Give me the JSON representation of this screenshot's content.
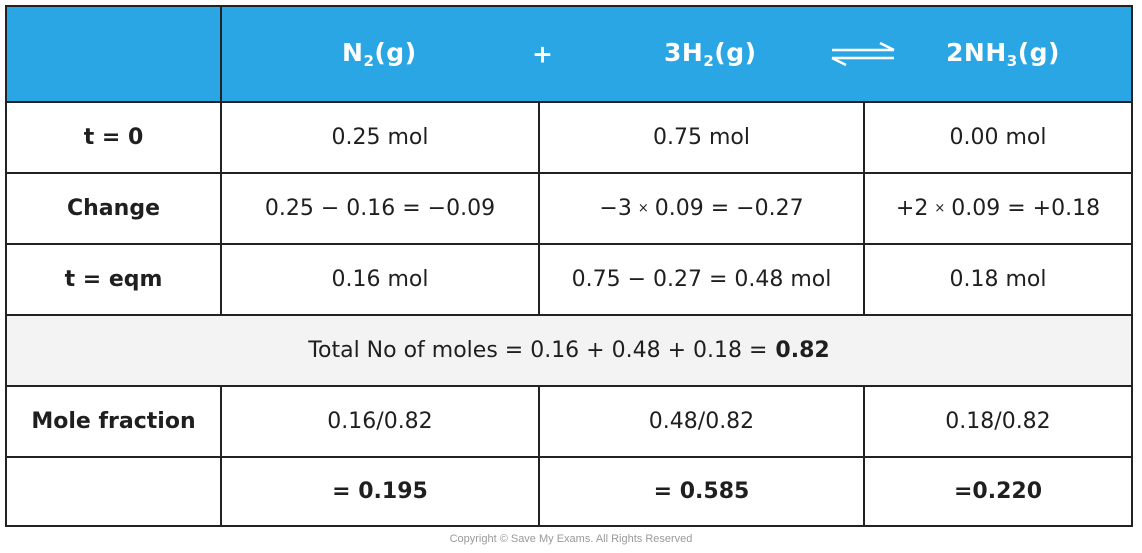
{
  "header": {
    "reactant1": {
      "text": "N",
      "sub": "2",
      "state": "(g)"
    },
    "plus": "+",
    "reactant2": {
      "text": "3H",
      "sub": "2",
      "state": "(g)"
    },
    "product": {
      "text": "2NH",
      "sub": "3",
      "state": "(g)"
    }
  },
  "rows": {
    "t0": {
      "label": "t = 0",
      "c1": "0.25 mol",
      "c2": "0.75 mol",
      "c3": "0.00 mol"
    },
    "change": {
      "label": "Change",
      "c1": "0.25 − 0.16 = −0.09",
      "c2_a": "−3",
      "c2_x": "×",
      "c2_b": "0.09 = −0.27",
      "c3_a": "+2",
      "c3_x": "×",
      "c3_b": "0.09 = +0.18"
    },
    "teqm": {
      "label": "t = eqm",
      "c1": "0.16 mol",
      "c2": "0.75 − 0.27 = 0.48 mol",
      "c3": "0.18 mol"
    },
    "total": {
      "text": "Total No of moles = 0.16 + 0.48 + 0.18 = ",
      "value": "0.82"
    },
    "molefrac": {
      "label": "Mole fraction",
      "c1": "0.16/0.82",
      "c2": "0.48/0.82",
      "c3": "0.18/0.82"
    },
    "result": {
      "label": "",
      "c1": "= 0.195",
      "c2": "= 0.585",
      "c3": "=0.220"
    }
  },
  "copyright": "Copyright © Save My Exams. All Rights Reserved",
  "colors": {
    "header_bg": "#2aa6e4",
    "grey_row": "#f3f3f3",
    "border": "#222222"
  }
}
